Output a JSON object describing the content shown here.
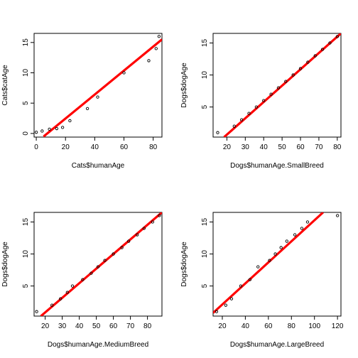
{
  "chart_data": [
    {
      "type": "scatter",
      "xlabel": "Cats$humanAge",
      "ylabel": "Cats$catAge",
      "xlim": [
        -1.5,
        86
      ],
      "ylim": [
        -0.6,
        16.5
      ],
      "xticks": [
        0,
        20,
        40,
        60,
        80
      ],
      "yticks": [
        0,
        5,
        10,
        15
      ],
      "points": [
        [
          0,
          0.2
        ],
        [
          4,
          0.4
        ],
        [
          9,
          0.7
        ],
        [
          14,
          0.8
        ],
        [
          18,
          1.0
        ],
        [
          23,
          2.1
        ],
        [
          35,
          4.1
        ],
        [
          42,
          6.0
        ],
        [
          60,
          10.0
        ],
        [
          77,
          12.0
        ],
        [
          82,
          14.0
        ],
        [
          84,
          16.0
        ]
      ],
      "fit_line": [
        [
          5,
          -0.5
        ],
        [
          86,
          15.5
        ]
      ],
      "fit_color": "#ff0000",
      "point_color": "#000000"
    },
    {
      "type": "scatter",
      "xlabel": "Dogs$humanAge.SmallBreed",
      "ylabel": "Dogs$dogAge",
      "xlim": [
        12.5,
        82
      ],
      "ylim": [
        0.3,
        16.5
      ],
      "xticks": [
        20,
        30,
        40,
        50,
        60,
        70,
        80
      ],
      "yticks": [
        5,
        10,
        15
      ],
      "points": [
        [
          15,
          1
        ],
        [
          24,
          2
        ],
        [
          28,
          3
        ],
        [
          32,
          4
        ],
        [
          36,
          5
        ],
        [
          40,
          6
        ],
        [
          44,
          7
        ],
        [
          48,
          8
        ],
        [
          52,
          9
        ],
        [
          56,
          10
        ],
        [
          60,
          11
        ],
        [
          64,
          12
        ],
        [
          68,
          13
        ],
        [
          72,
          14
        ],
        [
          76,
          15
        ],
        [
          80,
          16
        ]
      ],
      "fit_line": [
        [
          18.5,
          0.3
        ],
        [
          82,
          16.5
        ]
      ],
      "fit_color": "#ff0000",
      "point_color": "#000000"
    },
    {
      "type": "scatter",
      "xlabel": "Dogs$humanAge.MediumBreed",
      "ylabel": "Dogs$dogAge",
      "xlim": [
        13.5,
        88.5
      ],
      "ylim": [
        0.3,
        16.5
      ],
      "xticks": [
        20,
        30,
        40,
        50,
        60,
        70,
        80
      ],
      "yticks": [
        5,
        10,
        15
      ],
      "points": [
        [
          15,
          1
        ],
        [
          24,
          2
        ],
        [
          29,
          3
        ],
        [
          33,
          4
        ],
        [
          36,
          5
        ],
        [
          42,
          6
        ],
        [
          47,
          7
        ],
        [
          51,
          8
        ],
        [
          55,
          9
        ],
        [
          60,
          10
        ],
        [
          65,
          11
        ],
        [
          69,
          12
        ],
        [
          74,
          13
        ],
        [
          78,
          14
        ],
        [
          83,
          15
        ],
        [
          87,
          16
        ]
      ],
      "fit_line": [
        [
          17.5,
          0.3
        ],
        [
          88.5,
          16.5
        ]
      ],
      "fit_color": "#ff0000",
      "point_color": "#000000"
    },
    {
      "type": "scatter",
      "xlabel": "Dogs$humanAge.LargeBreed",
      "ylabel": "Dogs$dogAge",
      "xlim": [
        12,
        123
      ],
      "ylim": [
        0.3,
        16.5
      ],
      "xticks": [
        20,
        40,
        60,
        80,
        100,
        120
      ],
      "yticks": [
        5,
        10,
        15
      ],
      "points": [
        [
          15,
          1
        ],
        [
          23,
          2
        ],
        [
          28,
          3
        ],
        [
          36,
          5
        ],
        [
          44,
          6
        ],
        [
          51,
          8
        ],
        [
          61,
          9
        ],
        [
          66,
          10
        ],
        [
          71,
          11
        ],
        [
          76,
          12
        ],
        [
          83,
          13
        ],
        [
          89,
          14
        ],
        [
          94,
          15
        ],
        [
          120,
          16
        ]
      ],
      "fit_line": [
        [
          12,
          0.8
        ],
        [
          107.5,
          16.5
        ]
      ],
      "fit_color": "#ff0000",
      "point_color": "#000000"
    }
  ]
}
